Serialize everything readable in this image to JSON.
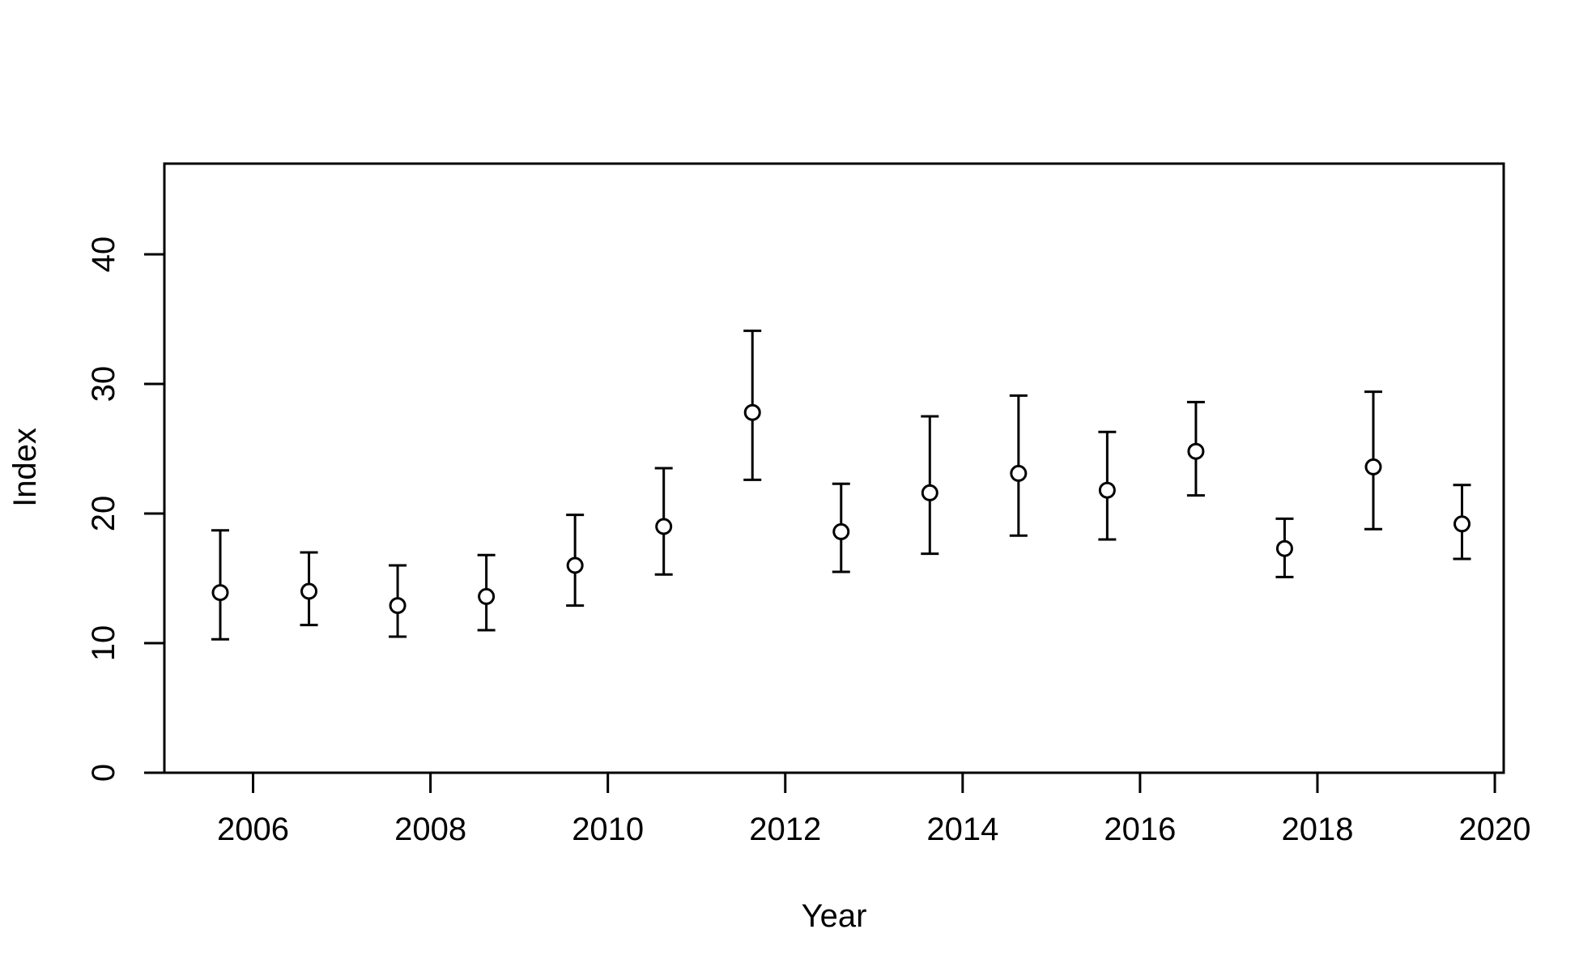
{
  "chart_data": {
    "type": "scatter",
    "title": "",
    "xlabel": "Year",
    "ylabel": "Index",
    "xlim": [
      2005.0,
      2020.1
    ],
    "ylim": [
      0,
      47
    ],
    "x_ticks": [
      2006,
      2008,
      2010,
      2012,
      2014,
      2016,
      2018,
      2020
    ],
    "y_ticks": [
      0,
      10,
      20,
      30,
      40
    ],
    "grid": false,
    "legend": "none",
    "marker": "open-circle",
    "error_bars": true,
    "colors": {
      "foreground": "#000000",
      "marker_fill": "#ffffff",
      "background": "#ffffff"
    },
    "series": [
      {
        "points": [
          {
            "x": 2005.63,
            "y": 13.9,
            "lower": 10.3,
            "upper": 18.7
          },
          {
            "x": 2006.63,
            "y": 14.0,
            "lower": 11.4,
            "upper": 17.0
          },
          {
            "x": 2007.63,
            "y": 12.9,
            "lower": 10.5,
            "upper": 16.0
          },
          {
            "x": 2008.63,
            "y": 13.6,
            "lower": 11.0,
            "upper": 16.8
          },
          {
            "x": 2009.63,
            "y": 16.0,
            "lower": 12.9,
            "upper": 19.9
          },
          {
            "x": 2010.63,
            "y": 19.0,
            "lower": 15.3,
            "upper": 23.5
          },
          {
            "x": 2011.63,
            "y": 27.8,
            "lower": 22.6,
            "upper": 34.1
          },
          {
            "x": 2012.63,
            "y": 18.6,
            "lower": 15.5,
            "upper": 22.3
          },
          {
            "x": 2013.63,
            "y": 21.6,
            "lower": 16.9,
            "upper": 27.5
          },
          {
            "x": 2014.63,
            "y": 23.1,
            "lower": 18.3,
            "upper": 29.1
          },
          {
            "x": 2015.63,
            "y": 21.8,
            "lower": 18.0,
            "upper": 26.3
          },
          {
            "x": 2016.63,
            "y": 24.8,
            "lower": 21.4,
            "upper": 28.6
          },
          {
            "x": 2017.63,
            "y": 17.3,
            "lower": 15.1,
            "upper": 19.6
          },
          {
            "x": 2018.63,
            "y": 23.6,
            "lower": 18.8,
            "upper": 29.4
          },
          {
            "x": 2019.63,
            "y": 19.2,
            "lower": 16.5,
            "upper": 22.2
          }
        ]
      }
    ]
  }
}
